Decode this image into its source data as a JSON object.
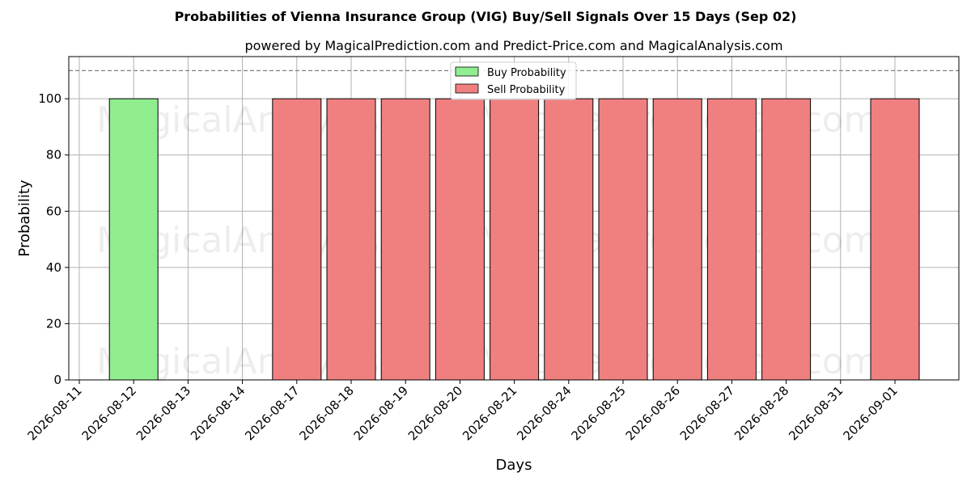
{
  "chart_data": {
    "type": "bar",
    "title": "Probabilities of Vienna Insurance Group (VIG) Buy/Sell Signals Over 15 Days (Sep 02)",
    "subtitle": "powered by MagicalPrediction.com and Predict-Price.com and MagicalAnalysis.com",
    "xlabel": "Days",
    "ylabel": "Probability",
    "ylim": [
      0,
      115
    ],
    "yticks": [
      0,
      20,
      40,
      60,
      80,
      100
    ],
    "threshold_line": 110,
    "grid": true,
    "legend_position": "top-center",
    "categories": [
      "2026-08-11",
      "2026-08-12",
      "2026-08-13",
      "2026-08-14",
      "2026-08-17",
      "2026-08-18",
      "2026-08-19",
      "2026-08-20",
      "2026-08-21",
      "2026-08-24",
      "2026-08-25",
      "2026-08-26",
      "2026-08-27",
      "2026-08-28",
      "2026-08-31",
      "2026-09-01"
    ],
    "series": [
      {
        "name": "Buy Probability",
        "color": "#90ee90",
        "values": [
          0,
          100,
          0,
          0,
          0,
          0,
          0,
          0,
          0,
          0,
          0,
          0,
          0,
          0,
          0,
          0
        ]
      },
      {
        "name": "Sell Probability",
        "color": "#f08080",
        "values": [
          0,
          0,
          0,
          0,
          100,
          100,
          100,
          100,
          100,
          100,
          100,
          100,
          100,
          100,
          0,
          100
        ]
      }
    ],
    "watermarks": [
      "MagicalAnalysis.com",
      "MagicalPrediction.com"
    ]
  }
}
